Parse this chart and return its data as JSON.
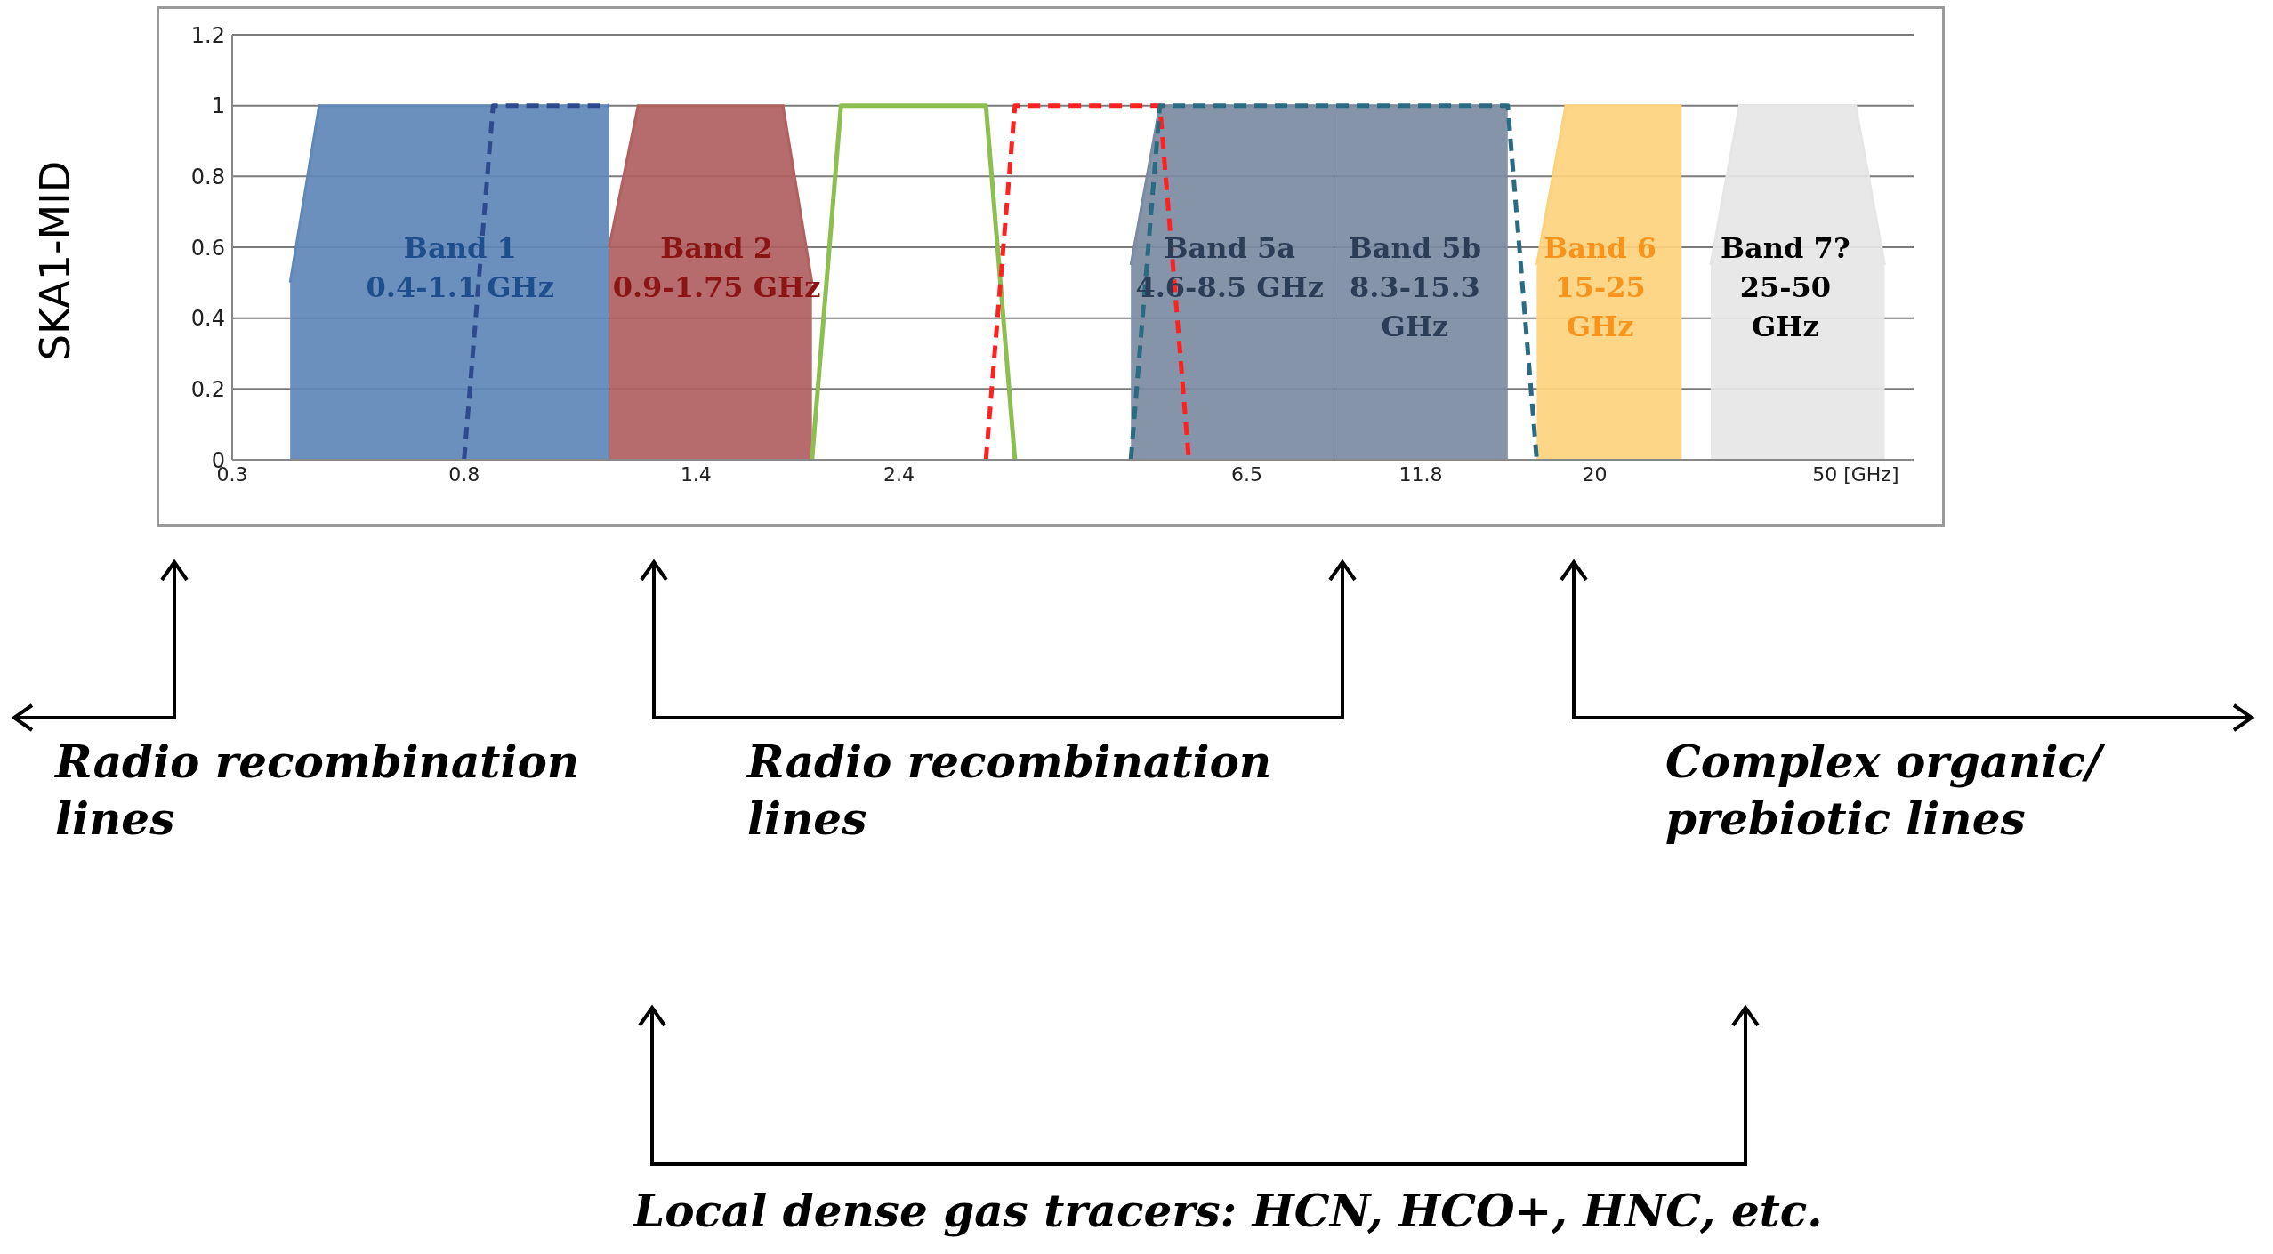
{
  "chart_data": {
    "type": "area",
    "ylabel": "SKA1-MID",
    "categories": [
      "0.3",
      null,
      null,
      null,
      null,
      null,
      null,
      null,
      "0.8",
      null,
      null,
      null,
      null,
      null,
      null,
      null,
      "1.4",
      null,
      null,
      null,
      null,
      null,
      null,
      "2.4",
      null,
      null,
      null,
      null,
      null,
      null,
      null,
      null,
      null,
      null,
      null,
      "6.5",
      null,
      null,
      null,
      null,
      null,
      "11.8",
      null,
      null,
      null,
      null,
      null,
      "20",
      null,
      null,
      null,
      null,
      null,
      null,
      null,
      null,
      "50 [GHz]",
      null,
      null
    ],
    "series": [
      {
        "name": "Band 1\n0.4-1.1 GHz",
        "color": "#5f87b7",
        "values": [
          null,
          null,
          0.5,
          1,
          1,
          1,
          1,
          1,
          1,
          1,
          1,
          1,
          1,
          1,
          null,
          null,
          null,
          null,
          null,
          null,
          null,
          null,
          null,
          null,
          null,
          null,
          null,
          null,
          null,
          null,
          null,
          null,
          null,
          null,
          null,
          null,
          null,
          null,
          null,
          null,
          null,
          null,
          null,
          null,
          null,
          null,
          null,
          null,
          null,
          null,
          null,
          null,
          null,
          null,
          null,
          null,
          null,
          null,
          null
        ]
      },
      {
        "type": "line",
        "line_style": "dashed",
        "color": "#2e4a8c",
        "values": [
          null,
          null,
          null,
          null,
          null,
          null,
          null,
          null,
          0,
          1,
          1,
          1,
          1,
          1,
          null,
          null,
          null,
          null,
          null,
          null,
          null,
          null,
          null,
          null,
          null,
          null,
          null,
          null,
          null,
          null,
          null,
          null,
          null,
          null,
          null,
          null,
          null,
          null,
          null,
          null,
          null,
          null,
          null,
          null,
          null,
          null,
          null,
          null,
          null,
          null,
          null,
          null,
          null,
          null,
          null,
          null,
          null,
          null,
          null
        ]
      },
      {
        "name": "Band 2\n0.9-1.75 GHz",
        "color": "#b0605f",
        "values": [
          null,
          null,
          null,
          null,
          null,
          null,
          null,
          null,
          null,
          null,
          null,
          null,
          null,
          0.6,
          1,
          1,
          1,
          1,
          1,
          1,
          0.5,
          null,
          null,
          null,
          null,
          null,
          null,
          null,
          null,
          null,
          null,
          null,
          null,
          null,
          null,
          null,
          null,
          null,
          null,
          null,
          null,
          null,
          null,
          null,
          null,
          null,
          null,
          null,
          null,
          null,
          null,
          null,
          null,
          null,
          null,
          null,
          null,
          null,
          null
        ]
      },
      {
        "type": "line",
        "line_style": "solid",
        "color": "#8cbf50",
        "values": [
          null,
          null,
          null,
          null,
          null,
          null,
          null,
          null,
          null,
          null,
          null,
          null,
          null,
          null,
          null,
          null,
          null,
          null,
          null,
          null,
          0,
          1,
          1,
          1,
          1,
          1,
          1,
          0,
          null,
          null,
          null,
          null,
          null,
          null,
          null,
          null,
          null,
          null,
          null,
          null,
          null,
          null,
          null,
          null,
          null,
          null,
          null,
          null,
          null,
          null,
          null,
          null,
          null,
          null,
          null,
          null,
          null,
          null,
          null
        ]
      },
      {
        "type": "line",
        "line_style": "dashed",
        "color": "#ff2020",
        "values": [
          null,
          null,
          null,
          null,
          null,
          null,
          null,
          null,
          null,
          null,
          null,
          null,
          null,
          null,
          null,
          null,
          null,
          null,
          null,
          null,
          null,
          null,
          null,
          null,
          null,
          null,
          0,
          1,
          1,
          1,
          1,
          1,
          1,
          0,
          null,
          null,
          null,
          null,
          null,
          null,
          null,
          null,
          null,
          null,
          null,
          null,
          null,
          null,
          null,
          null,
          null,
          null,
          null,
          null,
          null,
          null,
          null,
          null,
          null
        ]
      },
      {
        "name": "Band 5a\n4.6-8.5 GHz",
        "color": "#7b8ba2",
        "values": [
          null,
          null,
          null,
          null,
          null,
          null,
          null,
          null,
          null,
          null,
          null,
          null,
          null,
          null,
          null,
          null,
          null,
          null,
          null,
          null,
          null,
          null,
          null,
          null,
          null,
          null,
          null,
          null,
          null,
          null,
          null,
          0.55,
          1,
          1,
          1,
          1,
          1,
          1,
          1,
          null,
          null,
          null,
          null,
          null,
          null,
          null,
          null,
          null,
          null,
          null,
          null,
          null,
          null,
          null,
          null,
          null,
          null,
          null,
          null
        ]
      },
      {
        "name": "Band 5b\n8.3-15.3\nGHz",
        "color": "#7b8ba2",
        "values": [
          null,
          null,
          null,
          null,
          null,
          null,
          null,
          null,
          null,
          null,
          null,
          null,
          null,
          null,
          null,
          null,
          null,
          null,
          null,
          null,
          null,
          null,
          null,
          null,
          null,
          null,
          null,
          null,
          null,
          null,
          null,
          null,
          null,
          null,
          null,
          null,
          null,
          null,
          1,
          1,
          1,
          1,
          1,
          1,
          1,
          null,
          null,
          null,
          null,
          null,
          null,
          null,
          null,
          null,
          null,
          null,
          null,
          null,
          null
        ]
      },
      {
        "type": "line",
        "line_style": "dashed",
        "color": "#2a6b82",
        "values": [
          null,
          null,
          null,
          null,
          null,
          null,
          null,
          null,
          null,
          null,
          null,
          null,
          null,
          null,
          null,
          null,
          null,
          null,
          null,
          null,
          null,
          null,
          null,
          null,
          null,
          null,
          null,
          null,
          null,
          null,
          null,
          0,
          1,
          1,
          1,
          1,
          1,
          1,
          1,
          1,
          1,
          1,
          1,
          1,
          1,
          0,
          null,
          null,
          null,
          null,
          null,
          null,
          null,
          null,
          null,
          null,
          null,
          null,
          null
        ]
      },
      {
        "name": "Band 6\n15-25\nGHz",
        "color": "#fdd27d",
        "values": [
          null,
          null,
          null,
          null,
          null,
          null,
          null,
          null,
          null,
          null,
          null,
          null,
          null,
          null,
          null,
          null,
          null,
          null,
          null,
          null,
          null,
          null,
          null,
          null,
          null,
          null,
          null,
          null,
          null,
          null,
          null,
          null,
          null,
          null,
          null,
          null,
          null,
          null,
          null,
          null,
          null,
          null,
          null,
          null,
          null,
          0.55,
          1,
          1,
          1,
          1,
          1,
          null,
          null,
          null,
          null,
          null,
          null,
          null,
          null
        ]
      },
      {
        "name": "Band 7?\n25-50\nGHz",
        "color": "#e6e6e6",
        "values": [
          null,
          null,
          null,
          null,
          null,
          null,
          null,
          null,
          null,
          null,
          null,
          null,
          null,
          null,
          null,
          null,
          null,
          null,
          null,
          null,
          null,
          null,
          null,
          null,
          null,
          null,
          null,
          null,
          null,
          null,
          null,
          null,
          null,
          null,
          null,
          null,
          null,
          null,
          null,
          null,
          null,
          null,
          null,
          null,
          null,
          null,
          null,
          null,
          null,
          null,
          null,
          0.55,
          1,
          1,
          1,
          1,
          1,
          0.55,
          null
        ]
      }
    ],
    "ylim": [
      0,
      1.2
    ],
    "yticks": [
      0,
      0.2,
      0.4,
      0.6,
      0.8,
      1,
      1.2
    ],
    "grid": "y",
    "marker": "none",
    "annotations": [
      "Radio recombination lines",
      "Radio recombination lines",
      "Complex organic/ prebiotic lines",
      "Local dense gas tracers: HCN, HCO+, HNC, etc."
    ]
  }
}
